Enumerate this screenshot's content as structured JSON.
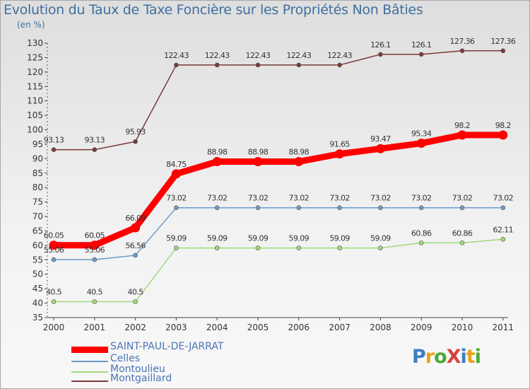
{
  "chart_data": {
    "type": "line",
    "title": "Evolution du Taux de Taxe Foncière sur les Propriétés Non Bâties",
    "ylabel": "(en %)",
    "xlabel": "",
    "ylim": [
      35,
      130
    ],
    "yticks": [
      35,
      40,
      45,
      50,
      55,
      60,
      65,
      70,
      75,
      80,
      85,
      90,
      95,
      100,
      105,
      110,
      115,
      120,
      125,
      130
    ],
    "grid": false,
    "categories": [
      "2000",
      "2001",
      "2002",
      "2003",
      "2004",
      "2005",
      "2006",
      "2007",
      "2008",
      "2009",
      "2010",
      "2011"
    ],
    "series": [
      {
        "name": "SAINT-PAUL-DE-JARRAT",
        "color": "#ff0000",
        "values": [
          60.05,
          60.05,
          66.09,
          84.75,
          88.98,
          88.98,
          88.98,
          91.65,
          93.47,
          95.34,
          98.2,
          98.2
        ],
        "labels": [
          "60.05",
          "60.05",
          "66.09",
          "84.75",
          "88.98",
          "88.98",
          "88.98",
          "91.65",
          "93.47",
          "95.34",
          "98.2",
          "98.2"
        ]
      },
      {
        "name": "Celles",
        "color": "#6c9bc8",
        "values": [
          55.06,
          55.06,
          56.56,
          73.02,
          73.02,
          73.02,
          73.02,
          73.02,
          73.02,
          73.02,
          73.02,
          73.02
        ],
        "labels": [
          "55.06",
          "55.06",
          "56.56",
          "73.02",
          "73.02",
          "73.02",
          "73.02",
          "73.02",
          "73.02",
          "73.02",
          "73.02",
          "73.02"
        ]
      },
      {
        "name": "Montoulieu",
        "color": "#a2d97a",
        "values": [
          40.5,
          40.5,
          40.5,
          59.09,
          59.09,
          59.09,
          59.09,
          59.09,
          59.09,
          60.86,
          60.86,
          62.11
        ],
        "labels": [
          "40.5",
          "40.5",
          "40.5",
          "59.09",
          "59.09",
          "59.09",
          "59.09",
          "59.09",
          "59.09",
          "60.86",
          "60.86",
          "62.11"
        ]
      },
      {
        "name": "Montgaillard",
        "color": "#7b3a3a",
        "values": [
          93.13,
          93.13,
          95.93,
          122.43,
          122.43,
          122.43,
          122.43,
          122.43,
          126.1,
          126.1,
          127.36,
          127.36
        ],
        "labels": [
          "93.13",
          "93.13",
          "95.93",
          "122.43",
          "122.43",
          "122.43",
          "122.43",
          "122.43",
          "126.1",
          "126.1",
          "127.36",
          "127.36"
        ]
      }
    ]
  },
  "logo": {
    "text": "ProXiti",
    "colors": [
      "#3a7fc0",
      "#e8a21a",
      "#4aa83a",
      "#d94040",
      "#3a7fc0",
      "#e8a21a",
      "#4aa83a"
    ]
  }
}
